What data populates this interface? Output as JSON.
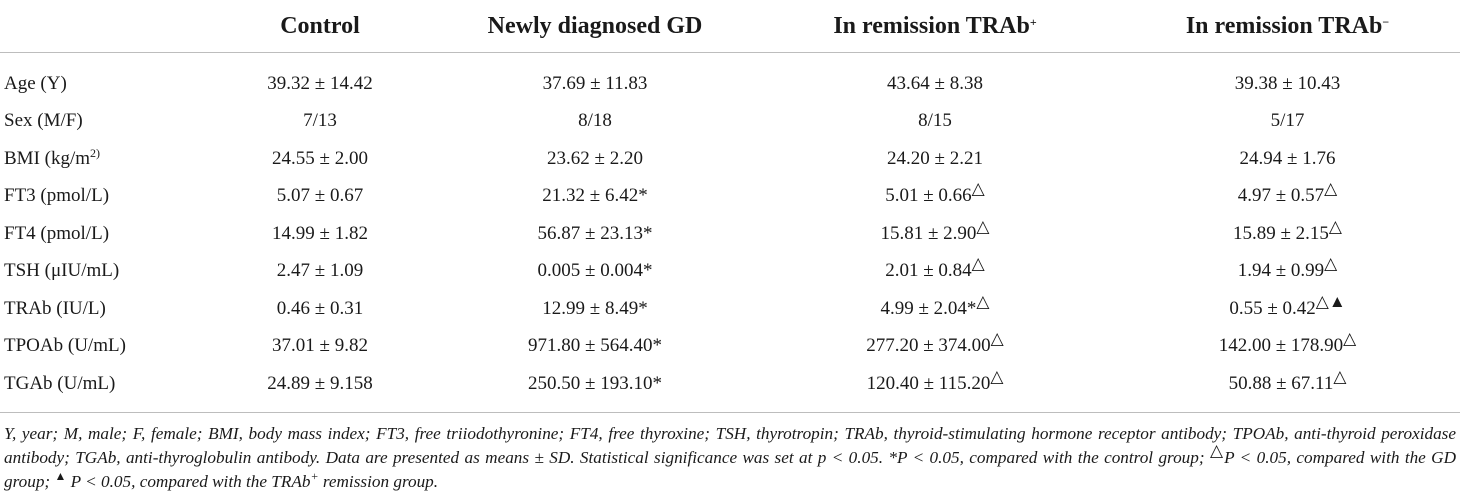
{
  "headers": [
    "",
    "Control",
    "Newly diagnosed GD",
    "In remission TRAb",
    "In remission TRAb"
  ],
  "header_sups": [
    "",
    "",
    "",
    "+",
    "−"
  ],
  "rows": [
    {
      "label": "Age (Y)",
      "c1": "39.32 ± 14.42",
      "c2": "37.69 ± 11.83",
      "c3": "43.64 ± 8.38",
      "c4": "39.38 ± 10.43"
    },
    {
      "label": "Sex (M/F)",
      "c1": "7/13",
      "c2": "8/18",
      "c3": "8/15",
      "c4": "5/17"
    },
    {
      "label": "BMI (kg/m",
      "label_sup": "2)",
      "c1": "24.55 ± 2.00",
      "c2": "23.62 ± 2.20",
      "c3": "24.20 ± 2.21",
      "c4": "24.94 ± 1.76"
    },
    {
      "label": "FT3 (pmol/L)",
      "c1": "5.07 ± 0.67",
      "c2": "21.32 ± 6.42*",
      "c3": "5.01 ± 0.66",
      "c3_mark": "△",
      "c4": "4.97 ± 0.57",
      "c4_mark": "△"
    },
    {
      "label": "FT4 (pmol/L)",
      "c1": "14.99 ± 1.82",
      "c2": "56.87 ± 23.13*",
      "c3": "15.81 ± 2.90",
      "c3_mark": "△",
      "c4": "15.89 ± 2.15",
      "c4_mark": "△"
    },
    {
      "label": "TSH (μIU/mL)",
      "c1": "2.47 ± 1.09",
      "c2": "0.005 ± 0.004*",
      "c3": "2.01 ± 0.84",
      "c3_mark": "△",
      "c4": "1.94 ± 0.99",
      "c4_mark": "△"
    },
    {
      "label": "TRAb (IU/L)",
      "c1": "0.46 ± 0.31",
      "c2": "12.99 ± 8.49*",
      "c3": "4.99 ± 2.04*",
      "c3_mark": "△",
      "c4": "0.55 ± 0.42",
      "c4_mark": "△▲"
    },
    {
      "label": "TPOAb (U/mL)",
      "c1": "37.01 ± 9.82",
      "c2": "971.80 ± 564.40*",
      "c3": "277.20 ± 374.00",
      "c3_mark": "△",
      "c4": "142.00 ± 178.90",
      "c4_mark": "△"
    },
    {
      "label": "TGAb (U/mL)",
      "c1": "24.89 ± 9.158",
      "c2": "250.50 ± 193.10*",
      "c3": "120.40 ± 115.20",
      "c3_mark": "△",
      "c4": "50.88 ± 67.11",
      "c4_mark": "△"
    }
  ],
  "footnote": {
    "part1": "Y, year; M, male; F, female; BMI, body mass index; FT3, free triiodothyronine; FT4, free thyroxine; TSH, thyrotropin; TRAb, thyroid-stimulating hormone receptor antibody; TPOAb, anti-thyroid peroxidase antibody; TGAb, anti-thyroglobulin antibody. Data are presented as means ± SD. Statistical significance was set at p < 0.05. *P < 0.05, compared with the control group; ",
    "mark1": "△",
    "part2": "P < 0.05, compared with the GD group; ",
    "mark2": "▲",
    "part3": " P < 0.05, compared with the TRAb",
    "sup3": "+",
    "part4": " remission group."
  }
}
